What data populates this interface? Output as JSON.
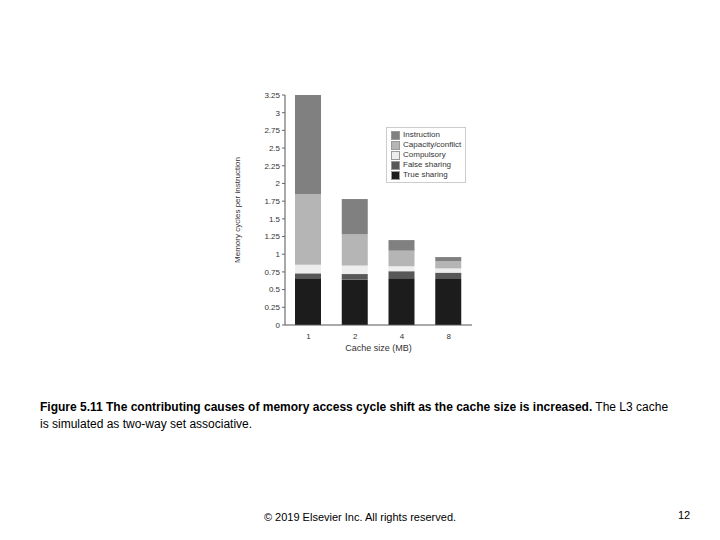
{
  "chart_data": {
    "type": "bar",
    "stacked": true,
    "x_label": "Cache size (MB)",
    "y_label": "Memory cycles per instruction",
    "categories": [
      "1",
      "2",
      "4",
      "8"
    ],
    "series": [
      {
        "name": "True sharing",
        "color": "#1c1c1c",
        "values": [
          0.66,
          0.64,
          0.66,
          0.65
        ]
      },
      {
        "name": "False sharing",
        "color": "#575757",
        "values": [
          0.07,
          0.08,
          0.1,
          0.09
        ]
      },
      {
        "name": "Compulsory",
        "color": "#ededed",
        "values": [
          0.12,
          0.12,
          0.07,
          0.06
        ]
      },
      {
        "name": "Capacity/conflict",
        "color": "#b5b5b5",
        "values": [
          1.0,
          0.44,
          0.22,
          0.1
        ]
      },
      {
        "name": "Instruction",
        "color": "#808080",
        "values": [
          1.4,
          0.5,
          0.15,
          0.06
        ]
      }
    ],
    "ylim": [
      0,
      3.25
    ],
    "yticks": [
      0,
      0.25,
      0.5,
      0.75,
      1,
      1.25,
      1.5,
      1.75,
      2,
      2.25,
      2.5,
      2.75,
      3,
      3.25
    ],
    "grid": false,
    "legend": "upper right"
  },
  "caption": {
    "title": "Figure 5.11 The contributing causes of memory access cycle shift as the cache size is increased.",
    "text": "The L3 cache is simulated as two-way set associative."
  },
  "footer": {
    "copyright": "© 2019 Elsevier Inc. All rights reserved.",
    "page": "12"
  }
}
